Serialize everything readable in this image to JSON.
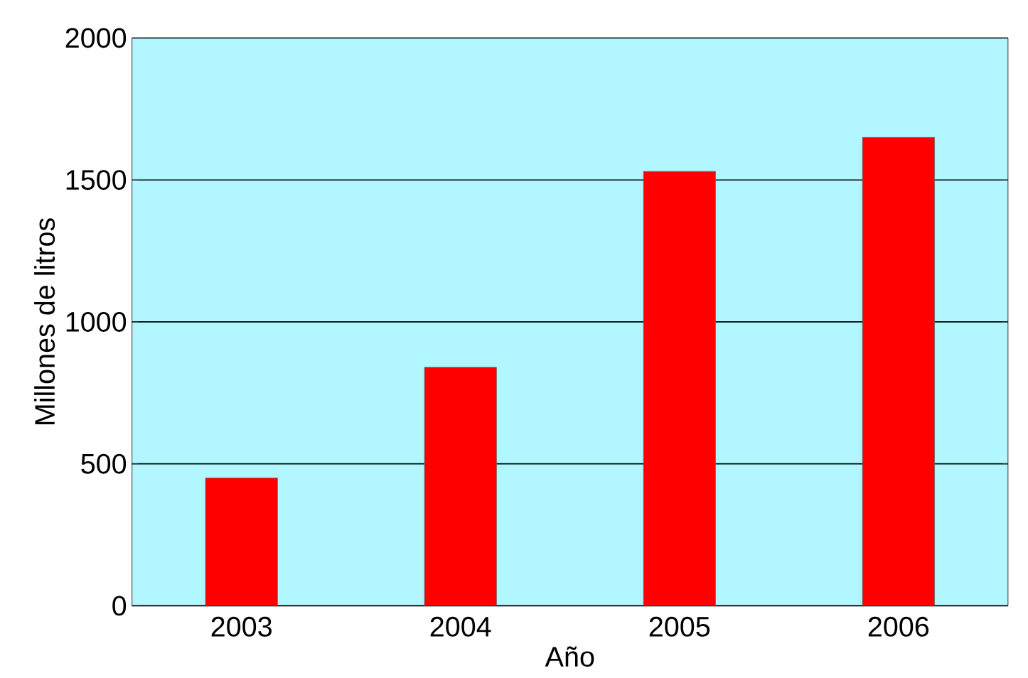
{
  "chart_data": {
    "type": "bar",
    "xlabel": "Año",
    "ylabel": "Millones de litros",
    "categories": [
      "2003",
      "2004",
      "2005",
      "2006"
    ],
    "values": [
      450,
      840,
      1530,
      1650
    ],
    "color": "#ff0000",
    "ylim": [
      0,
      2000
    ],
    "yticks": [
      0,
      500,
      1000,
      1500,
      2000
    ],
    "grid": "y"
  }
}
